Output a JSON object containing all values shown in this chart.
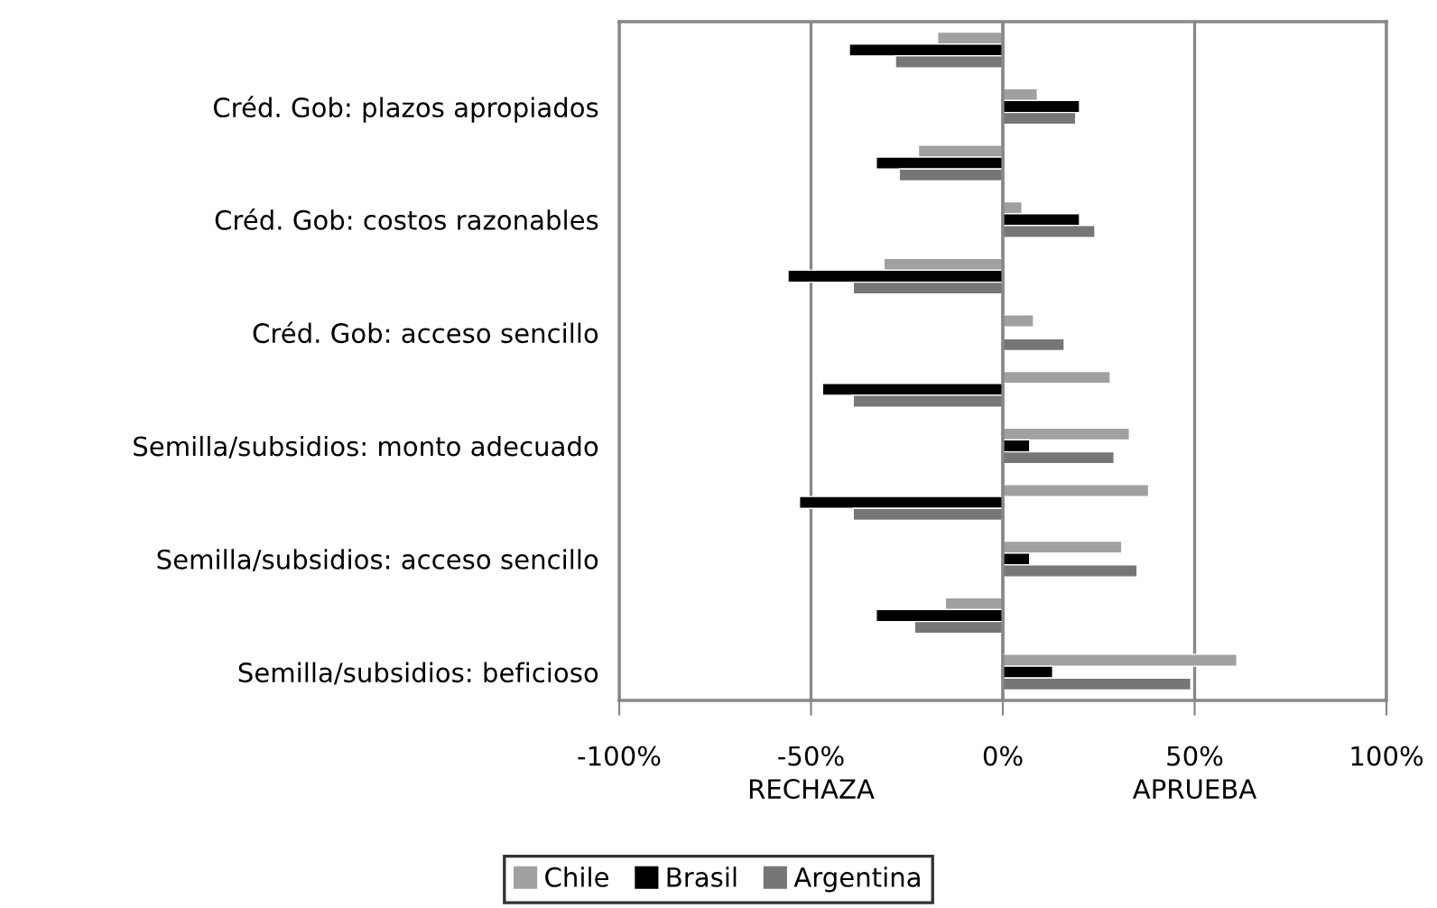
{
  "chart_data": {
    "type": "bar",
    "orientation": "horizontal",
    "categories": [
      null,
      "Créd. Gob: plazos apropiados",
      null,
      "Créd. Gob: costos razonables",
      null,
      "Créd. Gob: acceso sencillo",
      null,
      "Semilla/subsidios: monto adecuado",
      null,
      "Semilla/subsidios: acceso sencillo",
      null,
      "Semilla/subsidios: beficioso"
    ],
    "series": [
      {
        "name": "Chile",
        "color": "#a0a0a0",
        "values": [
          -17,
          9,
          -22,
          5,
          -31,
          8,
          28,
          33,
          38,
          31,
          -15,
          61
        ]
      },
      {
        "name": "Brasil",
        "color": "#000000",
        "values": [
          -40,
          20,
          -33,
          20,
          -56,
          null,
          -47,
          7,
          -53,
          7,
          -33,
          13
        ]
      },
      {
        "name": "Argentina",
        "color": "#767676",
        "values": [
          -28,
          19,
          -27,
          24,
          -39,
          16,
          -39,
          29,
          -39,
          35,
          -23,
          49
        ]
      }
    ],
    "xlim": [
      -100,
      100
    ],
    "xticks": [
      {
        "value": -100,
        "label": "-100%"
      },
      {
        "value": -50,
        "label": "-50%"
      },
      {
        "value": 0,
        "label": "0%"
      },
      {
        "value": 50,
        "label": "50%"
      },
      {
        "value": 100,
        "label": "100%"
      }
    ],
    "annotations": [
      "RECHAZA",
      "APRUEBA"
    ],
    "grid": "x",
    "legend": "bottom"
  }
}
